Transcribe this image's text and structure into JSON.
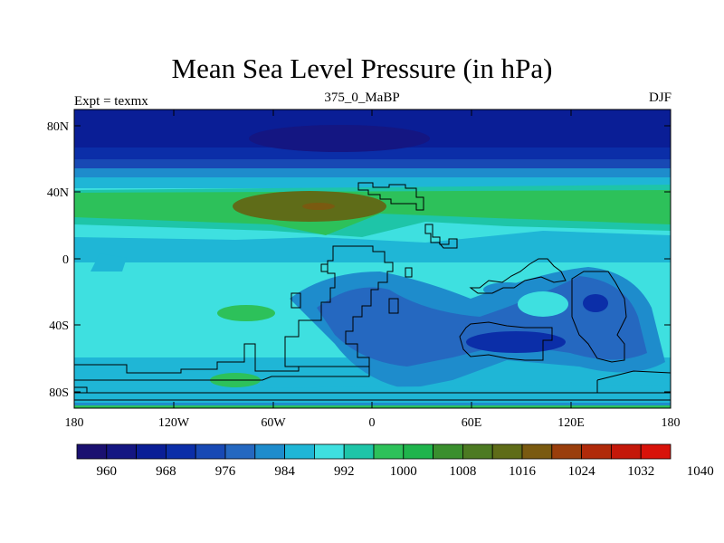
{
  "title": "Mean Sea Level Pressure (in hPa)",
  "subtitle": "375_0_MaBP",
  "left_label": "Expt = texmx",
  "right_label": "DJF",
  "y_ticks": [
    "80N",
    "40N",
    "0",
    "40S",
    "80S"
  ],
  "x_ticks": [
    "180",
    "120W",
    "60W",
    "0",
    "60E",
    "120E",
    "180"
  ],
  "colorbar": {
    "labels": [
      "960",
      "968",
      "976",
      "984",
      "992",
      "1000",
      "1008",
      "1016",
      "1024",
      "1032",
      "1040"
    ],
    "colors": [
      "#1a1070",
      "#141682",
      "#0a1e96",
      "#0b2ea8",
      "#1849b4",
      "#2568c0",
      "#1e8ccc",
      "#1fb6d6",
      "#3ee0e0",
      "#1ec5a8",
      "#2dc15a",
      "#1fb44c",
      "#3a8f2e",
      "#4c7a22",
      "#5f6c18",
      "#7a5a10",
      "#9a3e0c",
      "#b02a0a",
      "#c4180a",
      "#d8120a"
    ]
  }
}
